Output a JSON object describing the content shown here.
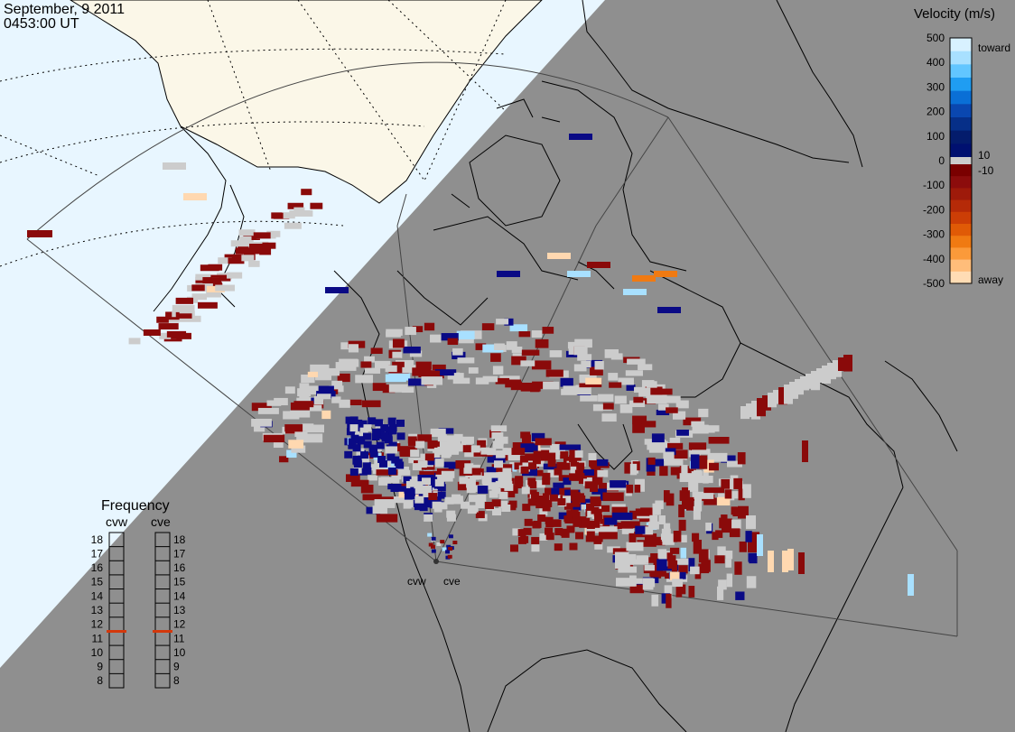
{
  "header": {
    "date": "September, 9 2011",
    "time": "0453:00 UT"
  },
  "colorbar": {
    "title": "Velocity (m/s)",
    "labels": [
      "500",
      "400",
      "300",
      "200",
      "100",
      "0",
      "-100",
      "-200",
      "-300",
      "-400",
      "-500"
    ],
    "small_labels": [
      "10",
      "-10"
    ],
    "toward_label": "toward",
    "away_label": "away",
    "toward_colors": [
      "#d8f1ff",
      "#a8e0ff",
      "#62c6ff",
      "#1f9df2",
      "#0a6fd6",
      "#0a47b0",
      "#062f88",
      "#041c6c",
      "#001070"
    ],
    "away_colors": [
      "#7a0000",
      "#8c0c0c",
      "#9e1a0a",
      "#b52a08",
      "#cc3e06",
      "#e05a06",
      "#f07a12",
      "#fb9a3a",
      "#ffbd7a",
      "#ffdcb4"
    ]
  },
  "frequency": {
    "title": "Frequency",
    "radars": [
      {
        "name": "cvw",
        "value": 11
      },
      {
        "name": "cve",
        "value": 11
      }
    ],
    "ticks": [
      "18",
      "17",
      "16",
      "15",
      "14",
      "13",
      "12",
      "11",
      "10",
      "9",
      "8"
    ]
  },
  "radars": [
    {
      "code": "cvw"
    },
    {
      "code": "cve"
    }
  ],
  "colors": {
    "night": "#8f8f8f",
    "ocean_day": "#e8f6ff",
    "land_day": "#fbf7e8",
    "ground_scatter": "#cccccc",
    "away_dark": "#8a0a0a",
    "toward_dark": "#0a0a85",
    "toward_light": "#a8e0ff",
    "away_light": "#ffd8b0",
    "frequency_marker": "#d4380c"
  }
}
